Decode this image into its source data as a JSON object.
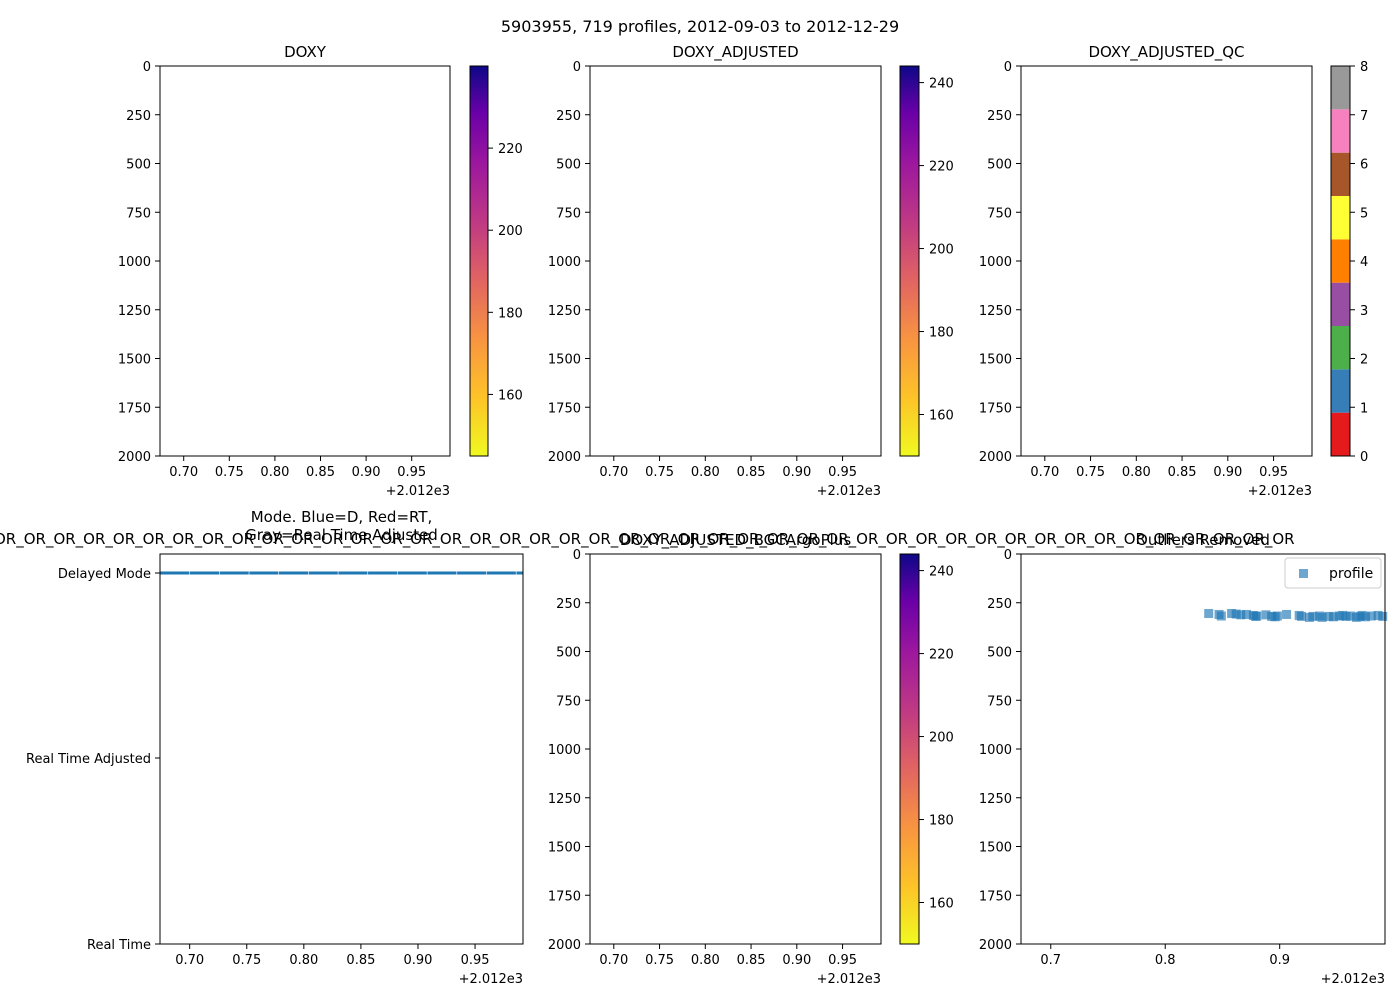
{
  "suptitle": "5903955, 719 profiles, 2012-09-03 to 2012-12-29",
  "x_offset_label": "+2.012e3",
  "overlap_text": "OR_OR_OR_OR_OR_OR_OR_OR_OR_OR_OR_OR_OR_OR_OR_OR_OR_OR_OR_OR_OR_OR_OR_OR_OR_OR_OR_OR_OR_OR_OR_OR_OR_OR_OR_OR_OR_OR_OR_OR_OR_OR_OR_OR",
  "chart_data": [
    {
      "id": "doxy",
      "type": "heatmap",
      "title": "DOXY",
      "xlim": [
        0.674,
        0.992
      ],
      "xticks": [
        0.7,
        0.75,
        0.8,
        0.85,
        0.9,
        0.95
      ],
      "xticklabels": [
        "0.70",
        "0.75",
        "0.80",
        "0.85",
        "0.90",
        "0.95"
      ],
      "ylim": [
        2000,
        0
      ],
      "yticks": [
        0,
        250,
        500,
        750,
        1000,
        1250,
        1500,
        1750,
        2000
      ],
      "yticklabels": [
        "0",
        "250",
        "500",
        "750",
        "1000",
        "1250",
        "1500",
        "1750",
        "2000"
      ],
      "colorbar": {
        "cmap": "plasma_r",
        "range": [
          145,
          240
        ],
        "ticks": [
          160,
          180,
          200,
          220
        ]
      }
    },
    {
      "id": "doxy-adjusted",
      "type": "heatmap",
      "title": "DOXY_ADJUSTED",
      "xlim": [
        0.674,
        0.992
      ],
      "xticks": [
        0.7,
        0.75,
        0.8,
        0.85,
        0.9,
        0.95
      ],
      "xticklabels": [
        "0.70",
        "0.75",
        "0.80",
        "0.85",
        "0.90",
        "0.95"
      ],
      "ylim": [
        2000,
        0
      ],
      "yticks": [
        0,
        250,
        500,
        750,
        1000,
        1250,
        1500,
        1750,
        2000
      ],
      "yticklabels": [
        "0",
        "250",
        "500",
        "750",
        "1000",
        "1250",
        "1500",
        "1750",
        "2000"
      ],
      "colorbar": {
        "cmap": "plasma_r",
        "range": [
          150,
          244
        ],
        "ticks": [
          160,
          180,
          200,
          220,
          240
        ]
      }
    },
    {
      "id": "doxy-adjusted-qc",
      "type": "heatmap",
      "title": "DOXY_ADJUSTED_QC",
      "xlim": [
        0.674,
        0.992
      ],
      "xticks": [
        0.7,
        0.75,
        0.8,
        0.85,
        0.9,
        0.95
      ],
      "xticklabels": [
        "0.70",
        "0.75",
        "0.80",
        "0.85",
        "0.90",
        "0.95"
      ],
      "ylim": [
        2000,
        0
      ],
      "yticks": [
        0,
        250,
        500,
        750,
        1000,
        1250,
        1500,
        1750,
        2000
      ],
      "yticklabels": [
        "0",
        "250",
        "500",
        "750",
        "1000",
        "1250",
        "1500",
        "1750",
        "2000"
      ],
      "colorbar": {
        "cmap": "qc_categorical",
        "range": [
          0,
          8
        ],
        "ticks": [
          0,
          1,
          2,
          3,
          4,
          5,
          6,
          7,
          8
        ],
        "categories": [
          "#e41a1c",
          "#377eb8",
          "#4daf4a",
          "#984ea3",
          "#ff7f00",
          "#ffff33",
          "#a65628",
          "#f781bf",
          "#999999"
        ]
      }
    },
    {
      "id": "mode",
      "type": "scatter",
      "title": "Mode. Blue=D, Red=RT,",
      "title2": "Gray=Real Time Adjusted",
      "xlim": [
        0.674,
        0.992
      ],
      "xticks": [
        0.7,
        0.75,
        0.8,
        0.85,
        0.9,
        0.95
      ],
      "xticklabels": [
        "0.70",
        "0.75",
        "0.80",
        "0.85",
        "0.90",
        "0.95"
      ],
      "ylim": [
        0,
        2
      ],
      "yticks": [
        0,
        1,
        2
      ],
      "yticklabels": [
        "Delayed Mode",
        "Real Time Adjusted",
        "Real Time"
      ],
      "series": [
        {
          "name": "Delayed Mode",
          "color": "#1f77b4",
          "y": 0,
          "x_start": 0.674,
          "x_end": 0.992,
          "step": 0.0013
        }
      ]
    },
    {
      "id": "doxy-bgcargoplus",
      "type": "heatmap",
      "title": "DOXY_ADJUSTED_BGCArgoPlus",
      "xlim": [
        0.674,
        0.992
      ],
      "xticks": [
        0.7,
        0.75,
        0.8,
        0.85,
        0.9,
        0.95
      ],
      "xticklabels": [
        "0.70",
        "0.75",
        "0.80",
        "0.85",
        "0.90",
        "0.95"
      ],
      "ylim": [
        2000,
        0
      ],
      "yticks": [
        0,
        250,
        500,
        750,
        1000,
        1250,
        1500,
        1750,
        2000
      ],
      "yticklabels": [
        "0",
        "250",
        "500",
        "750",
        "1000",
        "1250",
        "1500",
        "1750",
        "2000"
      ],
      "colorbar": {
        "cmap": "plasma_r",
        "range": [
          150,
          244
        ],
        "ticks": [
          160,
          180,
          200,
          220,
          240
        ]
      }
    },
    {
      "id": "outliers",
      "type": "scatter",
      "title": "Outliers Removed",
      "xlim": [
        0.674,
        0.992
      ],
      "xticks": [
        0.7,
        0.8,
        0.9
      ],
      "xticklabels": [
        "0.7",
        "0.8",
        "0.9"
      ],
      "ylim": [
        2000,
        0
      ],
      "yticks": [
        0,
        250,
        500,
        750,
        1000,
        1250,
        1500,
        1750,
        2000
      ],
      "yticklabels": [
        "0",
        "250",
        "500",
        "750",
        "1000",
        "1250",
        "1500",
        "1750",
        "2000"
      ],
      "legend": {
        "label": "profile",
        "position": "top-right"
      },
      "series": [
        {
          "name": "profile",
          "color": "#1f77b4",
          "x": [
            0.838,
            0.847,
            0.849,
            0.858,
            0.862,
            0.866,
            0.871,
            0.877,
            0.879,
            0.88,
            0.888,
            0.893,
            0.896,
            0.898,
            0.906,
            0.917,
            0.919,
            0.926,
            0.929,
            0.935,
            0.937,
            0.943,
            0.947,
            0.952,
            0.955,
            0.958,
            0.962,
            0.967,
            0.97,
            0.972,
            0.975,
            0.98,
            0.986,
            0.99
          ],
          "y": [
            305,
            310,
            318,
            305,
            308,
            312,
            310,
            315,
            320,
            318,
            312,
            320,
            322,
            318,
            310,
            315,
            320,
            325,
            320,
            318,
            325,
            320,
            322,
            318,
            315,
            320,
            318,
            325,
            320,
            315,
            322,
            318,
            315,
            320
          ]
        }
      ]
    }
  ]
}
